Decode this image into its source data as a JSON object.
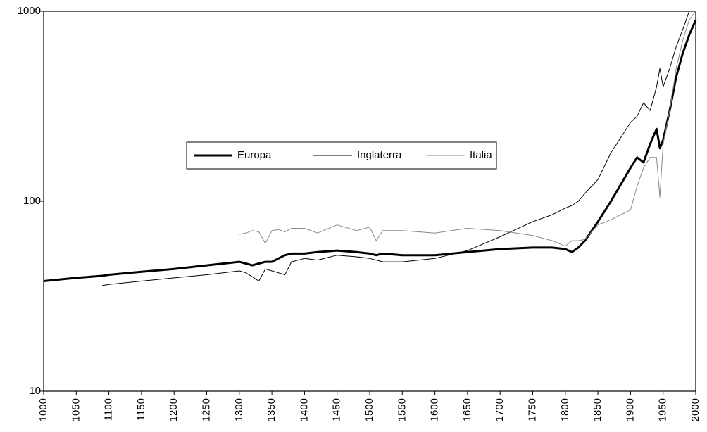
{
  "chart_data": {
    "type": "line",
    "log_y": true,
    "legend_position": "center",
    "grid": false,
    "x": [
      1000,
      1050,
      1090,
      1100,
      1150,
      1200,
      1250,
      1300,
      1310,
      1320,
      1330,
      1340,
      1350,
      1360,
      1370,
      1380,
      1400,
      1420,
      1450,
      1480,
      1500,
      1510,
      1520,
      1550,
      1600,
      1650,
      1700,
      1750,
      1780,
      1800,
      1810,
      1820,
      1830,
      1850,
      1870,
      1900,
      1910,
      1920,
      1930,
      1940,
      1945,
      1950,
      1960,
      1970,
      1980,
      1990,
      2000
    ],
    "series": [
      {
        "name": "Europa",
        "color": "#000000",
        "line_width": 3,
        "values": [
          38,
          39.5,
          40.5,
          41,
          42.5,
          44,
          46,
          48,
          47,
          46,
          47,
          48,
          48,
          50,
          52,
          53,
          53,
          54,
          55,
          54,
          53,
          52,
          53,
          52,
          52,
          54,
          56,
          57,
          57,
          56,
          54,
          57,
          62,
          78,
          100,
          150,
          170,
          160,
          200,
          240,
          190,
          210,
          300,
          450,
          600,
          750,
          900
        ]
      },
      {
        "name": "Inglaterra",
        "color": "#000000",
        "line_width": 1,
        "values": [
          null,
          null,
          36,
          36.5,
          38,
          39.5,
          41,
          43,
          42,
          40,
          38,
          44,
          43,
          42,
          41,
          48,
          50,
          49,
          52,
          51,
          50,
          49,
          48,
          48,
          50,
          55,
          65,
          78,
          85,
          92,
          95,
          100,
          110,
          130,
          180,
          260,
          280,
          330,
          300,
          400,
          500,
          400,
          500,
          650,
          800,
          1000,
          1000
        ]
      },
      {
        "name": "Italia",
        "color": "#888888",
        "line_width": 1,
        "values": [
          null,
          null,
          null,
          null,
          null,
          null,
          null,
          67,
          68,
          70,
          69,
          60,
          70,
          71,
          69,
          72,
          72,
          68,
          75,
          70,
          73,
          62,
          70,
          70,
          68,
          72,
          70,
          66,
          62,
          58,
          62,
          62,
          63,
          75,
          80,
          90,
          120,
          150,
          170,
          170,
          105,
          200,
          300,
          500,
          700,
          900,
          1000
        ]
      }
    ],
    "xlim": [
      1000,
      2000
    ],
    "xticks": [
      1000,
      1050,
      1100,
      1150,
      1200,
      1250,
      1300,
      1350,
      1400,
      1450,
      1500,
      1550,
      1600,
      1650,
      1700,
      1750,
      1800,
      1850,
      1900,
      1950,
      2000
    ],
    "ylim": [
      10,
      1000
    ],
    "yticks": [
      10,
      100,
      1000
    ]
  }
}
